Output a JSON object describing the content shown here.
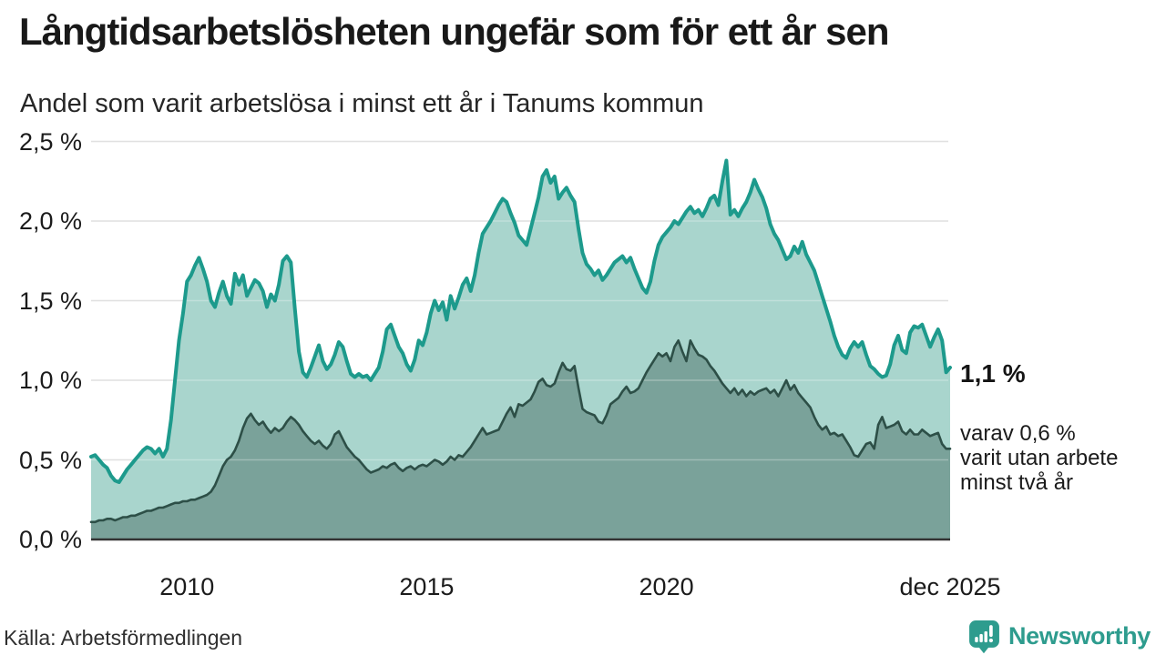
{
  "header": {
    "title": "Långtidsarbetslösheten ungefär som för ett år sen",
    "subtitle": "Andel som varit arbetslösa i minst ett år i Tanums kommun"
  },
  "chart_data": {
    "type": "area",
    "title": "Långtidsarbetslösheten ungefär som för ett år sen",
    "subtitle": "Andel som varit arbetslösa i minst ett år i Tanums kommun",
    "unit": "%",
    "frequency": "monthly",
    "x_start": "jan 2008",
    "x_end": "dec 2025",
    "ylim": [
      0,
      2.5
    ],
    "grid": "horizontal",
    "colors": {
      "line_1yr": "#1d9a8c",
      "fill_1yr": "#a9d5cd",
      "line_2yr": "#2d4f47",
      "fill_2yr": "#7aa29a",
      "gridline": "#d6d6d6",
      "axis": "#333333"
    },
    "y_ticks": [
      {
        "value": 2.5,
        "label": "2,5 %"
      },
      {
        "value": 2.0,
        "label": "2,0 %"
      },
      {
        "value": 1.5,
        "label": "1,5 %"
      },
      {
        "value": 1.0,
        "label": "1,0 %"
      },
      {
        "value": 0.5,
        "label": "0,5 %"
      },
      {
        "value": 0.0,
        "label": "0,0 %"
      }
    ],
    "x_ticks": [
      {
        "month_index": 24,
        "label": "2010"
      },
      {
        "month_index": 84,
        "label": "2015"
      },
      {
        "month_index": 144,
        "label": "2020"
      },
      {
        "month_index": 215,
        "label": "dec 2025"
      }
    ],
    "series": [
      {
        "name": "Andel arbetslösa minst ett år",
        "values": [
          0.52,
          0.53,
          0.5,
          0.47,
          0.45,
          0.4,
          0.37,
          0.36,
          0.4,
          0.44,
          0.47,
          0.5,
          0.53,
          0.56,
          0.58,
          0.57,
          0.54,
          0.57,
          0.52,
          0.57,
          0.75,
          1.0,
          1.25,
          1.42,
          1.62,
          1.66,
          1.72,
          1.77,
          1.7,
          1.62,
          1.5,
          1.46,
          1.55,
          1.62,
          1.53,
          1.48,
          1.67,
          1.6,
          1.66,
          1.53,
          1.58,
          1.63,
          1.61,
          1.56,
          1.46,
          1.54,
          1.5,
          1.6,
          1.75,
          1.78,
          1.74,
          1.45,
          1.18,
          1.05,
          1.02,
          1.08,
          1.15,
          1.22,
          1.12,
          1.07,
          1.1,
          1.16,
          1.24,
          1.21,
          1.12,
          1.04,
          1.02,
          1.04,
          1.02,
          1.03,
          1.0,
          1.04,
          1.08,
          1.18,
          1.32,
          1.35,
          1.28,
          1.21,
          1.17,
          1.1,
          1.06,
          1.13,
          1.25,
          1.22,
          1.3,
          1.42,
          1.5,
          1.44,
          1.49,
          1.38,
          1.53,
          1.45,
          1.52,
          1.6,
          1.64,
          1.56,
          1.66,
          1.8,
          1.92,
          1.96,
          2.0,
          2.05,
          2.1,
          2.14,
          2.12,
          2.05,
          1.99,
          1.91,
          1.88,
          1.85,
          1.95,
          2.05,
          2.15,
          2.28,
          2.32,
          2.24,
          2.28,
          2.14,
          2.18,
          2.21,
          2.16,
          2.12,
          1.95,
          1.8,
          1.73,
          1.7,
          1.66,
          1.69,
          1.63,
          1.66,
          1.7,
          1.74,
          1.76,
          1.78,
          1.74,
          1.77,
          1.7,
          1.64,
          1.58,
          1.55,
          1.62,
          1.75,
          1.85,
          1.9,
          1.93,
          1.96,
          2.0,
          1.98,
          2.02,
          2.06,
          2.09,
          2.05,
          2.07,
          2.03,
          2.08,
          2.14,
          2.16,
          2.1,
          2.25,
          2.38,
          2.04,
          2.07,
          2.03,
          2.08,
          2.12,
          2.18,
          2.26,
          2.2,
          2.15,
          2.08,
          1.98,
          1.92,
          1.88,
          1.82,
          1.76,
          1.78,
          1.84,
          1.8,
          1.87,
          1.79,
          1.74,
          1.69,
          1.61,
          1.53,
          1.45,
          1.37,
          1.28,
          1.21,
          1.16,
          1.14,
          1.2,
          1.24,
          1.21,
          1.24,
          1.16,
          1.09,
          1.07,
          1.04,
          1.02,
          1.03,
          1.1,
          1.22,
          1.28,
          1.19,
          1.17,
          1.3,
          1.34,
          1.33,
          1.35,
          1.28,
          1.21,
          1.27,
          1.32,
          1.25,
          1.05,
          1.08
        ]
      },
      {
        "name": "varav utan arbete minst två år",
        "values": [
          0.11,
          0.11,
          0.12,
          0.12,
          0.13,
          0.13,
          0.12,
          0.13,
          0.14,
          0.14,
          0.15,
          0.15,
          0.16,
          0.17,
          0.18,
          0.18,
          0.19,
          0.2,
          0.2,
          0.21,
          0.22,
          0.23,
          0.23,
          0.24,
          0.24,
          0.25,
          0.25,
          0.26,
          0.27,
          0.28,
          0.3,
          0.34,
          0.4,
          0.46,
          0.5,
          0.52,
          0.56,
          0.62,
          0.7,
          0.76,
          0.79,
          0.75,
          0.72,
          0.74,
          0.7,
          0.67,
          0.7,
          0.68,
          0.7,
          0.74,
          0.77,
          0.75,
          0.72,
          0.68,
          0.65,
          0.62,
          0.6,
          0.62,
          0.59,
          0.57,
          0.6,
          0.66,
          0.68,
          0.63,
          0.58,
          0.55,
          0.52,
          0.5,
          0.47,
          0.44,
          0.42,
          0.43,
          0.44,
          0.46,
          0.45,
          0.47,
          0.48,
          0.45,
          0.43,
          0.45,
          0.46,
          0.44,
          0.46,
          0.47,
          0.46,
          0.48,
          0.5,
          0.49,
          0.47,
          0.49,
          0.52,
          0.5,
          0.53,
          0.52,
          0.55,
          0.58,
          0.62,
          0.66,
          0.7,
          0.66,
          0.67,
          0.68,
          0.69,
          0.74,
          0.79,
          0.83,
          0.77,
          0.85,
          0.84,
          0.86,
          0.88,
          0.93,
          0.99,
          1.01,
          0.97,
          0.96,
          0.98,
          1.05,
          1.11,
          1.07,
          1.06,
          1.09,
          0.95,
          0.82,
          0.8,
          0.79,
          0.78,
          0.74,
          0.73,
          0.78,
          0.85,
          0.87,
          0.89,
          0.93,
          0.96,
          0.92,
          0.93,
          0.95,
          1.0,
          1.05,
          1.09,
          1.13,
          1.17,
          1.15,
          1.17,
          1.12,
          1.21,
          1.25,
          1.18,
          1.12,
          1.25,
          1.2,
          1.16,
          1.15,
          1.13,
          1.09,
          1.06,
          1.02,
          0.98,
          0.95,
          0.92,
          0.95,
          0.91,
          0.94,
          0.9,
          0.93,
          0.91,
          0.93,
          0.94,
          0.95,
          0.92,
          0.94,
          0.9,
          0.95,
          1.0,
          0.94,
          0.97,
          0.92,
          0.89,
          0.86,
          0.83,
          0.77,
          0.72,
          0.69,
          0.71,
          0.66,
          0.67,
          0.65,
          0.66,
          0.62,
          0.58,
          0.53,
          0.52,
          0.56,
          0.6,
          0.61,
          0.57,
          0.72,
          0.77,
          0.7,
          0.71,
          0.72,
          0.74,
          0.68,
          0.66,
          0.69,
          0.66,
          0.66,
          0.69,
          0.67,
          0.65,
          0.66,
          0.67,
          0.6,
          0.57,
          0.57
        ]
      }
    ],
    "annotations": {
      "latest_total": "1,1 %",
      "sub_lines": [
        "varav 0,6 %",
        "varit utan arbete",
        "minst två år"
      ]
    }
  },
  "footer": {
    "source": "Källa: Arbetsförmedlingen",
    "brand": "Newsworthy",
    "brand_color": "#2e9c8e"
  }
}
